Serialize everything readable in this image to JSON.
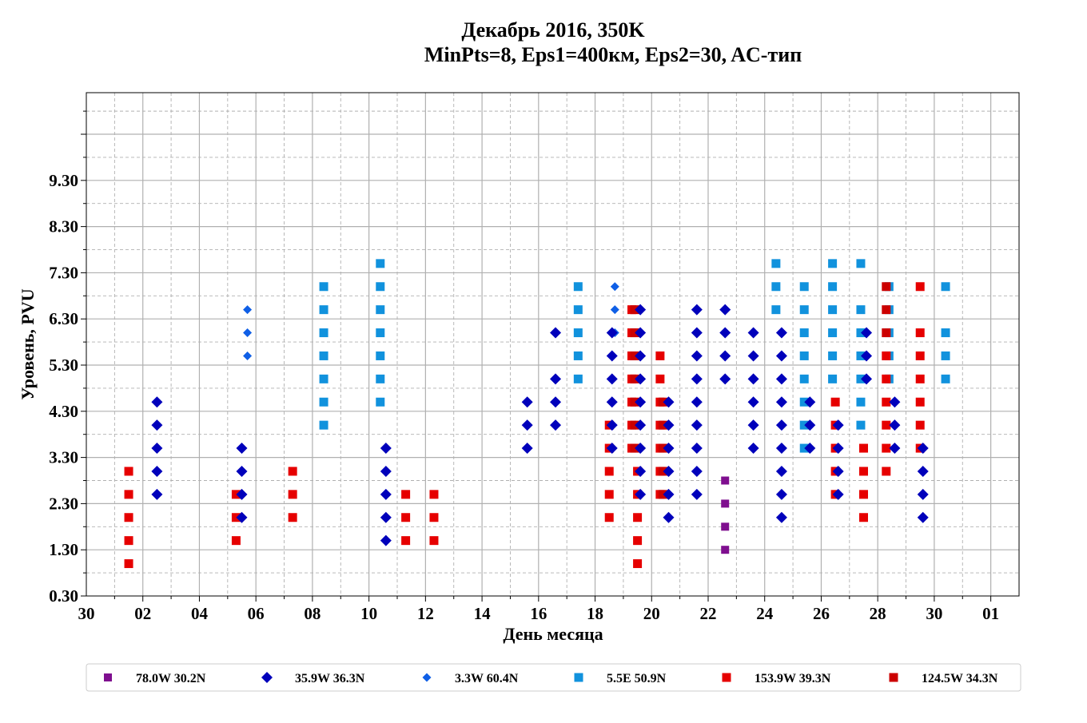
{
  "chart_data": {
    "type": "scatter",
    "title": "Декабрь 2016, 350K",
    "subtitle": "MinPts=8, Eps1=400км, Eps2=30, AC-тип",
    "xlabel": "День месяца",
    "ylabel": "Уровень, PVU",
    "x_tick_labels": [
      "30",
      "02",
      "04",
      "06",
      "08",
      "10",
      "12",
      "14",
      "16",
      "18",
      "20",
      "22",
      "24",
      "26",
      "28",
      "30",
      "01"
    ],
    "y_tick_labels": [
      "0.30",
      "1.30",
      "2.30",
      "3.30",
      "4.30",
      "5.30",
      "6.30",
      "7.30",
      "8.30",
      "9.30"
    ],
    "xlim": [
      0,
      33
    ],
    "ylim": [
      0.3,
      11.2
    ],
    "grid": true,
    "legend_position": "bottom",
    "series": [
      {
        "name": "78.0W 30.2N",
        "color": "#7f0f8f",
        "marker": "square-small",
        "points": [
          [
            22.6,
            2.8
          ],
          [
            22.6,
            2.3
          ],
          [
            22.6,
            1.8
          ],
          [
            22.6,
            1.3
          ]
        ]
      },
      {
        "name": "35.9W 36.3N",
        "color": "#0000bb",
        "marker": "diamond",
        "points": [
          [
            2.5,
            4.5
          ],
          [
            2.5,
            4.0
          ],
          [
            2.5,
            3.5
          ],
          [
            2.5,
            3.0
          ],
          [
            2.5,
            2.5
          ],
          [
            5.5,
            3.5
          ],
          [
            5.5,
            3.0
          ],
          [
            5.5,
            2.5
          ],
          [
            5.5,
            2.0
          ],
          [
            10.6,
            3.5
          ],
          [
            10.6,
            3.0
          ],
          [
            10.6,
            2.5
          ],
          [
            10.6,
            2.0
          ],
          [
            10.6,
            1.5
          ],
          [
            15.6,
            4.5
          ],
          [
            15.6,
            4.0
          ],
          [
            15.6,
            3.5
          ],
          [
            16.6,
            6.0
          ],
          [
            16.6,
            5.0
          ],
          [
            16.6,
            4.5
          ],
          [
            16.6,
            4.0
          ],
          [
            18.6,
            6.0
          ],
          [
            18.6,
            5.5
          ],
          [
            18.6,
            5.0
          ],
          [
            18.6,
            4.5
          ],
          [
            18.6,
            4.0
          ],
          [
            18.6,
            3.5
          ],
          [
            19.6,
            6.5
          ],
          [
            19.6,
            6.0
          ],
          [
            19.6,
            5.5
          ],
          [
            19.6,
            5.0
          ],
          [
            19.6,
            4.5
          ],
          [
            19.6,
            4.0
          ],
          [
            19.6,
            3.5
          ],
          [
            19.6,
            3.0
          ],
          [
            19.6,
            2.5
          ],
          [
            20.6,
            4.5
          ],
          [
            20.6,
            4.0
          ],
          [
            20.6,
            3.5
          ],
          [
            20.6,
            3.0
          ],
          [
            20.6,
            2.5
          ],
          [
            20.6,
            2.0
          ],
          [
            21.6,
            6.5
          ],
          [
            21.6,
            6.0
          ],
          [
            21.6,
            5.5
          ],
          [
            21.6,
            5.0
          ],
          [
            21.6,
            4.5
          ],
          [
            21.6,
            4.0
          ],
          [
            21.6,
            3.5
          ],
          [
            21.6,
            3.0
          ],
          [
            21.6,
            2.5
          ],
          [
            22.6,
            6.5
          ],
          [
            22.6,
            6.0
          ],
          [
            22.6,
            5.5
          ],
          [
            22.6,
            5.0
          ],
          [
            23.6,
            6.0
          ],
          [
            23.6,
            5.5
          ],
          [
            23.6,
            5.0
          ],
          [
            23.6,
            4.5
          ],
          [
            23.6,
            4.0
          ],
          [
            23.6,
            3.5
          ],
          [
            24.6,
            6.0
          ],
          [
            24.6,
            5.5
          ],
          [
            24.6,
            5.0
          ],
          [
            24.6,
            4.5
          ],
          [
            24.6,
            4.0
          ],
          [
            24.6,
            3.5
          ],
          [
            24.6,
            3.0
          ],
          [
            24.6,
            2.5
          ],
          [
            24.6,
            2.0
          ],
          [
            25.6,
            4.5
          ],
          [
            25.6,
            4.0
          ],
          [
            25.6,
            3.5
          ],
          [
            26.6,
            4.0
          ],
          [
            26.6,
            3.5
          ],
          [
            26.6,
            3.0
          ],
          [
            26.6,
            2.5
          ],
          [
            27.6,
            6.0
          ],
          [
            27.6,
            5.5
          ],
          [
            27.6,
            5.0
          ],
          [
            28.6,
            4.5
          ],
          [
            28.6,
            4.0
          ],
          [
            28.6,
            3.5
          ],
          [
            29.6,
            3.5
          ],
          [
            29.6,
            3.0
          ],
          [
            29.6,
            2.5
          ],
          [
            29.6,
            2.0
          ]
        ]
      },
      {
        "name": "3.3W 60.4N",
        "color": "#0f5fe6",
        "marker": "diamond-small",
        "points": [
          [
            5.7,
            6.5
          ],
          [
            5.7,
            6.0
          ],
          [
            5.7,
            5.5
          ],
          [
            18.7,
            7.0
          ],
          [
            18.7,
            6.5
          ],
          [
            18.7,
            6.0
          ]
        ]
      },
      {
        "name": "5.5E 50.9N",
        "color": "#1192dd",
        "marker": "square",
        "points": [
          [
            8.4,
            7.0
          ],
          [
            8.4,
            6.5
          ],
          [
            8.4,
            6.0
          ],
          [
            8.4,
            5.5
          ],
          [
            8.4,
            5.0
          ],
          [
            8.4,
            4.5
          ],
          [
            8.4,
            4.0
          ],
          [
            10.4,
            7.5
          ],
          [
            10.4,
            7.0
          ],
          [
            10.4,
            6.5
          ],
          [
            10.4,
            6.0
          ],
          [
            10.4,
            5.5
          ],
          [
            10.4,
            5.0
          ],
          [
            10.4,
            4.5
          ],
          [
            17.4,
            7.0
          ],
          [
            17.4,
            6.5
          ],
          [
            17.4,
            6.0
          ],
          [
            17.4,
            5.5
          ],
          [
            17.4,
            5.0
          ],
          [
            24.4,
            7.5
          ],
          [
            24.4,
            7.0
          ],
          [
            24.4,
            6.5
          ],
          [
            25.4,
            7.0
          ],
          [
            25.4,
            6.5
          ],
          [
            25.4,
            6.0
          ],
          [
            25.4,
            5.5
          ],
          [
            25.4,
            5.0
          ],
          [
            25.4,
            4.5
          ],
          [
            25.4,
            4.0
          ],
          [
            25.4,
            3.5
          ],
          [
            26.4,
            7.5
          ],
          [
            26.4,
            7.0
          ],
          [
            26.4,
            6.5
          ],
          [
            26.4,
            6.0
          ],
          [
            26.4,
            5.5
          ],
          [
            26.4,
            5.0
          ],
          [
            27.4,
            7.5
          ],
          [
            27.4,
            6.5
          ],
          [
            27.4,
            6.0
          ],
          [
            27.4,
            5.5
          ],
          [
            27.4,
            5.0
          ],
          [
            27.4,
            4.5
          ],
          [
            27.4,
            4.0
          ],
          [
            28.4,
            7.0
          ],
          [
            28.4,
            6.5
          ],
          [
            28.4,
            6.0
          ],
          [
            28.4,
            5.5
          ],
          [
            28.4,
            5.0
          ],
          [
            30.4,
            7.0
          ],
          [
            30.4,
            6.0
          ],
          [
            30.4,
            5.5
          ],
          [
            30.4,
            5.0
          ]
        ]
      },
      {
        "name": "153.9W 39.3N",
        "color": "#e60000",
        "marker": "square",
        "points": [
          [
            1.5,
            3.0
          ],
          [
            1.5,
            2.5
          ],
          [
            1.5,
            2.0
          ],
          [
            1.5,
            1.5
          ],
          [
            1.5,
            1.0
          ],
          [
            5.3,
            2.5
          ],
          [
            5.3,
            2.0
          ],
          [
            5.3,
            1.5
          ],
          [
            7.3,
            3.0
          ],
          [
            7.3,
            2.5
          ],
          [
            7.3,
            2.0
          ],
          [
            11.3,
            2.5
          ],
          [
            11.3,
            2.0
          ],
          [
            11.3,
            1.5
          ],
          [
            12.3,
            2.5
          ],
          [
            12.3,
            2.0
          ],
          [
            12.3,
            1.5
          ],
          [
            18.5,
            4.0
          ],
          [
            18.5,
            3.5
          ],
          [
            18.5,
            3.0
          ],
          [
            18.5,
            2.5
          ],
          [
            18.5,
            2.0
          ],
          [
            19.3,
            6.5
          ],
          [
            19.3,
            6.0
          ],
          [
            19.3,
            5.5
          ],
          [
            19.3,
            5.0
          ],
          [
            19.3,
            4.5
          ],
          [
            19.3,
            4.0
          ],
          [
            19.3,
            3.5
          ],
          [
            19.5,
            3.0
          ],
          [
            19.5,
            2.5
          ],
          [
            19.5,
            2.0
          ],
          [
            19.5,
            1.5
          ],
          [
            19.5,
            1.0
          ],
          [
            20.3,
            5.5
          ],
          [
            20.3,
            5.0
          ],
          [
            20.3,
            4.5
          ],
          [
            20.3,
            4.0
          ],
          [
            20.3,
            3.5
          ],
          [
            20.3,
            3.0
          ],
          [
            20.3,
            2.5
          ],
          [
            26.5,
            4.5
          ],
          [
            26.5,
            4.0
          ],
          [
            26.5,
            3.5
          ],
          [
            26.5,
            3.0
          ],
          [
            26.5,
            2.5
          ],
          [
            27.5,
            3.5
          ],
          [
            27.5,
            3.0
          ],
          [
            27.5,
            2.5
          ],
          [
            27.5,
            2.0
          ],
          [
            28.3,
            5.5
          ],
          [
            28.3,
            5.0
          ],
          [
            28.3,
            4.5
          ],
          [
            28.3,
            4.0
          ],
          [
            28.3,
            3.5
          ],
          [
            28.3,
            3.0
          ],
          [
            29.5,
            7.0
          ],
          [
            29.5,
            6.0
          ],
          [
            29.5,
            5.5
          ],
          [
            29.5,
            5.0
          ],
          [
            29.5,
            4.5
          ],
          [
            29.5,
            4.0
          ],
          [
            29.5,
            3.5
          ]
        ]
      },
      {
        "name": "124.5W 34.3N",
        "color": "#cc0000",
        "marker": "square",
        "points": [
          [
            19.4,
            6.5
          ],
          [
            19.4,
            6.0
          ],
          [
            19.4,
            5.5
          ],
          [
            19.4,
            5.0
          ],
          [
            19.4,
            4.5
          ],
          [
            19.4,
            4.0
          ],
          [
            19.4,
            3.5
          ],
          [
            20.4,
            4.5
          ],
          [
            20.4,
            4.0
          ],
          [
            20.4,
            3.5
          ],
          [
            20.4,
            3.0
          ],
          [
            20.4,
            2.5
          ],
          [
            28.3,
            7.0
          ],
          [
            28.3,
            6.5
          ],
          [
            28.3,
            6.0
          ]
        ]
      }
    ]
  }
}
